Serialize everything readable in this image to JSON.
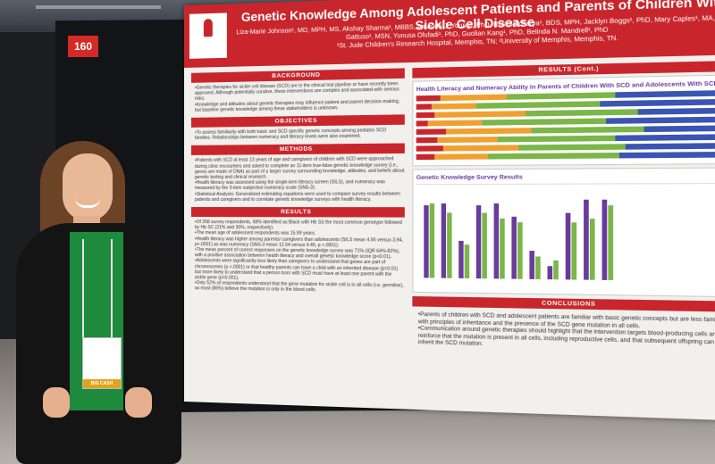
{
  "scene": {
    "booth_number": "160",
    "colors": {
      "poster_red": "#c8262c",
      "accent_purple": "#6a3b9c",
      "bar_green": "#7ab648",
      "bar_blue": "#3a55b4",
      "bar_orange": "#f0a030"
    }
  },
  "poster": {
    "title": "Genetic Knowledge Among Adolescent Patients and Parents of Children With Sickle Cell Disease",
    "authors": "Liza-Marie Johnson¹, MD, MPH, MS, Akshay Sharma¹, MBBS, Amanda J. Young², PhD, Rushil Acharya¹, BDS, MPH, Jacklyn Boggs¹, PhD, Mary Caples¹, MA, Jami Gattuso¹, MSN, Yunusa Olufadi¹, PhD, Guolian Kang¹, PhD, Belinda N. Mandrell¹, PhD",
    "affiliations": "¹St. Jude Children's Research Hospital, Memphis, TN; ²University of Memphis, Memphis, TN.",
    "logo_text": "St. Jude Children's Research Hospital",
    "sections": {
      "background": {
        "heading": "BACKGROUND",
        "bullets": [
          "Genetic therapies for sickle cell disease (SCD) are in the clinical trial pipeline or have recently been approved. Although potentially curative, these interventions are complex and associated with serious risks.",
          "Knowledge and attitudes about genetic therapies may influence patient and parent decision-making, but baseline genetic knowledge among these stakeholders is unknown."
        ]
      },
      "objectives": {
        "heading": "OBJECTIVES",
        "bullets": [
          "To assess familiarity with both basic and SCD specific genetic concepts among pediatric SCD families. Relationships between numeracy and literacy levels were also examined."
        ]
      },
      "methods": {
        "heading": "METHODS",
        "bullets": [
          "Patients with SCD at least 13 years of age and caregivers of children with SCD were approached during clinic encounters and asked to complete an 11-item true-false genetic knowledge survey (i.e., genes are made of DNA) as part of a larger survey surrounding knowledge, attitudes, and beliefs about genetic testing and clinical research.",
          "Health literacy was assessed using the single-item literacy screen (SILS), and numeracy was measured by the 3-item subjective numeracy scale (SNS-3).",
          "Statistical Analysis: Generalized estimating equations were used to compare survey results between patients and caregivers and to correlate genetic knowledge surveys with health literacy."
        ]
      },
      "results": {
        "heading": "RESULTS",
        "bullets": [
          "Of 268 survey respondents, 68% identified as Black with Hb SS the most common genotype followed by Hb SC (21% and 30%, respectively).",
          "The mean age of adolescent respondents was 15.99 years.",
          "Health literacy was higher among parents/ caregivers than adolescents (SILS mean 4.56 versus 3.94, p<.0001) as was numeracy (SNS-3 mean 12.54 versus 9.46, p <.0001).",
          "The mean percent of correct responses on the genetic knowledge survey was 71% (IQR 64%-82%), with a positive association between health literacy and overall genetic knowledge score (p<0.01).",
          "Adolescents were significantly less likely than caregivers to understand that genes are part of chromosomes (p <.0001) or that healthy parents can have a child with an inherited disease (p=0.01) but more likely to understand that a person born with SCD must have at least one parent with the sickle gene (p=0.001).",
          "Only 52% of respondents understood that the gene mutation for sickle cell is in all cells (i.e. germline), as most (86%) believe the mutation is only in the blood cells."
        ]
      },
      "results_cont": {
        "heading": "RESULTS (Cont.)",
        "chart1_title": "Health Literacy and Numeracy Ability in Parents of Children With SCD and Adolescents With SCD",
        "chart2_title": "Genetic Knowledge Survey Results"
      },
      "conclusions": {
        "heading": "CONCLUSIONS",
        "bullets": [
          "Parents of children with SCD and adolescent patients are familiar with basic genetic concepts but are less familiar with principles of inheritance and the presence of the SCD gene mutation in all cells.",
          "Communication around genetic therapies should highlight that the intervention targets blood-producing cells and reinforce that the mutation is present in all cells, including reproductive cells, and that subsequent offspring can inherit the SCD mutation."
        ]
      }
    },
    "presenter_badge": {
      "stripe": "BIG CASH"
    }
  }
}
